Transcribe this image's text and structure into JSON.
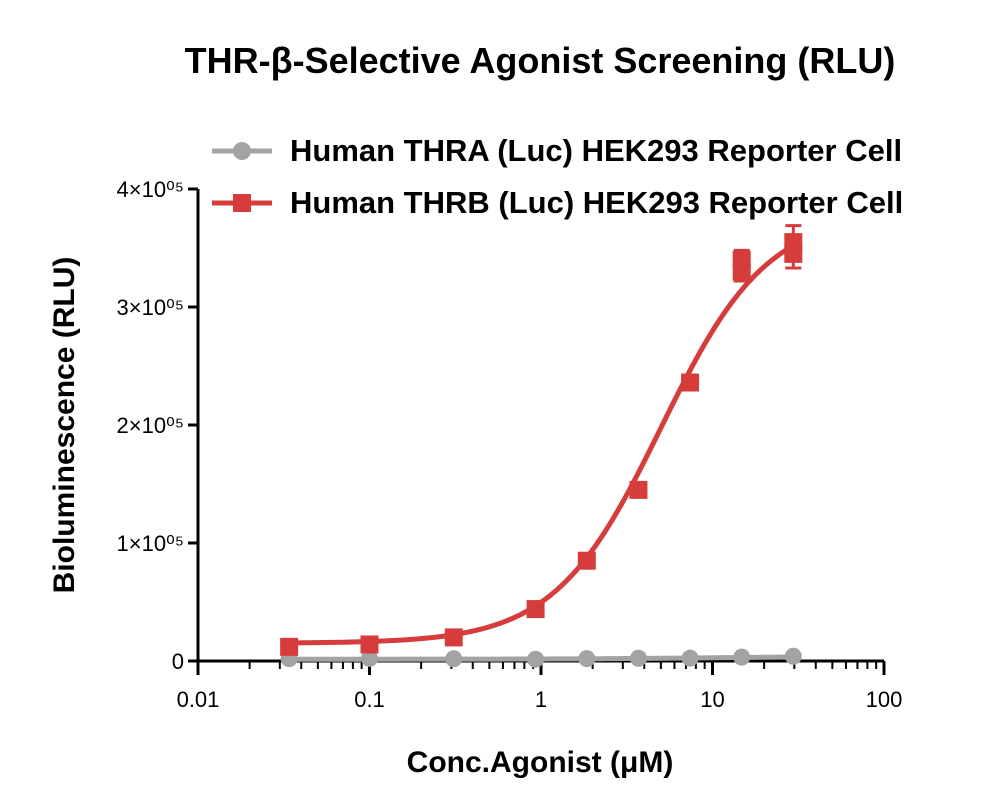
{
  "chart_data": {
    "type": "scatter",
    "title": "THR-β-Selective Agonist Screening (RLU)",
    "xlabel": "Conc.Agonist (μM)",
    "ylabel": "Bioluminescence (RLU)",
    "x_scale": "log",
    "xlim": [
      0.01,
      100
    ],
    "ylim": [
      0,
      400000
    ],
    "x_ticks": [
      "0.01",
      "0.1",
      "1",
      "10",
      "100"
    ],
    "y_ticks": [
      {
        "value": 0,
        "label": "0"
      },
      {
        "value": 100000,
        "label": "1×10⁰⁵"
      },
      {
        "value": 200000,
        "label": "2×10⁰⁵"
      },
      {
        "value": 300000,
        "label": "3×10⁰⁵"
      },
      {
        "value": 400000,
        "label": "4×10⁰⁵"
      }
    ],
    "legend_position": "top",
    "grid": false,
    "series": [
      {
        "name": "Human THRA (Luc) HEK293 Reporter Cell",
        "color": "#a3a3a6",
        "marker": "circle",
        "x": [
          0.034,
          0.1,
          0.31,
          0.93,
          1.85,
          3.7,
          7.4,
          14.8,
          29.6
        ],
        "y": [
          2000,
          2200,
          1900,
          1500,
          2000,
          2300,
          2400,
          3300,
          4000
        ],
        "fit": {
          "bottom": 1500,
          "top": 4000,
          "ec50": 10,
          "hill": 1
        }
      },
      {
        "name": "Human THRB (Luc) HEK293 Reporter Cell",
        "color": "#d63c3c",
        "marker": "square",
        "x": [
          0.034,
          0.1,
          0.31,
          0.93,
          1.85,
          3.7,
          7.4,
          14.8,
          14.8,
          29.6,
          29.6
        ],
        "y": [
          12000,
          14000,
          20000,
          44000,
          85000,
          145000,
          236000,
          330000,
          340000,
          345000,
          355000
        ],
        "err": [
          6000,
          5000,
          4000,
          4000,
          4000,
          5000,
          5000,
          8000,
          8000,
          12000,
          14000
        ],
        "fit": {
          "bottom": 15000,
          "top": 380000,
          "ec50": 5.0,
          "hill": 1.4
        }
      }
    ]
  }
}
